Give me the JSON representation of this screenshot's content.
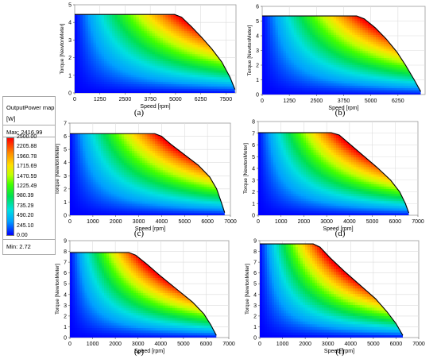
{
  "legend": {
    "title": "OutputPower map",
    "unit": "[W]",
    "max_label": "Max: 2416.99",
    "min_label": "Min:  2.72",
    "levels": [
      "2500.00",
      "2205.88",
      "1960.78",
      "1715.69",
      "1470.59",
      "1225.49",
      "980.39",
      "735.29",
      "490.20",
      "245.10",
      "0.00"
    ]
  },
  "chart_data": [
    {
      "type": "heatmap",
      "panel": "(a)",
      "xlabel": "Speed [rpm]",
      "ylabel": "Torque [NewtonMeter]",
      "xlim": [
        0,
        8000
      ],
      "ylim": [
        0,
        5
      ],
      "xticks": [
        0,
        1250,
        2500,
        3750,
        5000,
        6250,
        7500
      ],
      "xtick_labels": [
        "0",
        "1250",
        "2500",
        "3750",
        "5000",
        "6250",
        "7500"
      ],
      "yticks": [
        0,
        1,
        2,
        3,
        4,
        5
      ],
      "boundary": [
        [
          0,
          4.45
        ],
        [
          4950,
          4.45
        ],
        [
          5300,
          4.3
        ],
        [
          5800,
          3.75
        ],
        [
          6300,
          3.15
        ],
        [
          6800,
          2.5
        ],
        [
          7300,
          1.75
        ],
        [
          7700,
          0.9
        ],
        [
          7950,
          0.2
        ]
      ],
      "max_power": 2416.99
    },
    {
      "type": "heatmap",
      "panel": "(b)",
      "xlabel": "Speed [rpm]",
      "ylabel": "Torque [NewtonMeter]",
      "xlim": [
        0,
        7500
      ],
      "ylim": [
        0,
        6
      ],
      "xticks": [
        0,
        1250,
        2500,
        3750,
        5000,
        6250
      ],
      "xtick_labels": [
        "0",
        "1250",
        "2500",
        "3750",
        "5000",
        "6250"
      ],
      "yticks": [
        0,
        1,
        2,
        3,
        4,
        5,
        6
      ],
      "boundary": [
        [
          0,
          5.35
        ],
        [
          4350,
          5.35
        ],
        [
          4700,
          5.15
        ],
        [
          5200,
          4.55
        ],
        [
          5700,
          3.8
        ],
        [
          6200,
          2.9
        ],
        [
          6600,
          2.0
        ],
        [
          7000,
          1.0
        ],
        [
          7300,
          0.2
        ]
      ],
      "max_power": 2416.99
    },
    {
      "type": "heatmap",
      "panel": "(c)",
      "xlabel": "Speed [rpm]",
      "ylabel": "Torque [NewtonMeter]",
      "xlim": [
        0,
        7000
      ],
      "ylim": [
        0,
        7
      ],
      "xticks": [
        0,
        1000,
        2000,
        3000,
        4000,
        5000,
        6000,
        7000
      ],
      "xtick_labels": [
        "0",
        "1000",
        "2000",
        "3000",
        "4000",
        "5000",
        "6000",
        "7000"
      ],
      "yticks": [
        0,
        1,
        2,
        3,
        4,
        5,
        6,
        7
      ],
      "boundary": [
        [
          0,
          6.2
        ],
        [
          3700,
          6.2
        ],
        [
          4000,
          6.0
        ],
        [
          4400,
          5.4
        ],
        [
          5000,
          4.6
        ],
        [
          5600,
          3.8
        ],
        [
          6100,
          2.9
        ],
        [
          6400,
          2.0
        ],
        [
          6600,
          1.0
        ],
        [
          6750,
          0.2
        ]
      ],
      "max_power": 2416.99
    },
    {
      "type": "heatmap",
      "panel": "(d)",
      "xlabel": "Speed [rpm]",
      "ylabel": "Torque [NewtonMeter]",
      "xlim": [
        0,
        7000
      ],
      "ylim": [
        0,
        8
      ],
      "xticks": [
        0,
        1000,
        2000,
        3000,
        4000,
        5000,
        6000,
        7000
      ],
      "xtick_labels": [
        "0",
        "1000",
        "2000",
        "3000",
        "4000",
        "5000",
        "6000",
        "7000"
      ],
      "yticks": [
        0,
        1,
        2,
        3,
        4,
        5,
        6,
        7,
        8
      ],
      "boundary": [
        [
          0,
          7.05
        ],
        [
          3200,
          7.05
        ],
        [
          3550,
          6.85
        ],
        [
          4000,
          6.1
        ],
        [
          4600,
          5.1
        ],
        [
          5200,
          4.1
        ],
        [
          5800,
          3.0
        ],
        [
          6200,
          2.0
        ],
        [
          6450,
          1.0
        ],
        [
          6600,
          0.2
        ]
      ],
      "max_power": 2416.99
    },
    {
      "type": "heatmap",
      "panel": "(e)",
      "xlabel": "Speed [rpm]",
      "ylabel": "Torque [NewtonMeter]",
      "xlim": [
        0,
        7000
      ],
      "ylim": [
        0,
        9
      ],
      "xticks": [
        0,
        1000,
        2000,
        3000,
        4000,
        5000,
        6000,
        7000
      ],
      "xtick_labels": [
        "0",
        "1000",
        "2000",
        "3000",
        "4000",
        "5000",
        "6000",
        "7000"
      ],
      "yticks": [
        0,
        1,
        2,
        3,
        4,
        5,
        6,
        7,
        8,
        9
      ],
      "boundary": [
        [
          0,
          7.9
        ],
        [
          2600,
          7.9
        ],
        [
          2900,
          7.65
        ],
        [
          3400,
          6.8
        ],
        [
          4000,
          5.7
        ],
        [
          4700,
          4.5
        ],
        [
          5400,
          3.3
        ],
        [
          5900,
          2.2
        ],
        [
          6200,
          1.2
        ],
        [
          6450,
          0.2
        ]
      ],
      "max_power": 2416.99
    },
    {
      "type": "heatmap",
      "panel": "(f)",
      "xlabel": "Speed [rpm]",
      "ylabel": "Torque [NewtonMeter]",
      "xlim": [
        0,
        7000
      ],
      "ylim": [
        0,
        9
      ],
      "xticks": [
        0,
        1000,
        2000,
        3000,
        4000,
        5000,
        6000,
        7000
      ],
      "xtick_labels": [
        "0",
        "1000",
        "2000",
        "3000",
        "4000",
        "5000",
        "6000",
        "7000"
      ],
      "yticks": [
        0,
        1,
        2,
        3,
        4,
        5,
        6,
        7,
        8,
        9
      ],
      "boundary": [
        [
          0,
          8.7
        ],
        [
          2350,
          8.7
        ],
        [
          2650,
          8.4
        ],
        [
          3100,
          7.4
        ],
        [
          3700,
          6.2
        ],
        [
          4400,
          4.9
        ],
        [
          5100,
          3.6
        ],
        [
          5600,
          2.4
        ],
        [
          6000,
          1.3
        ],
        [
          6300,
          0.2
        ]
      ],
      "max_power": 2416.99
    }
  ]
}
